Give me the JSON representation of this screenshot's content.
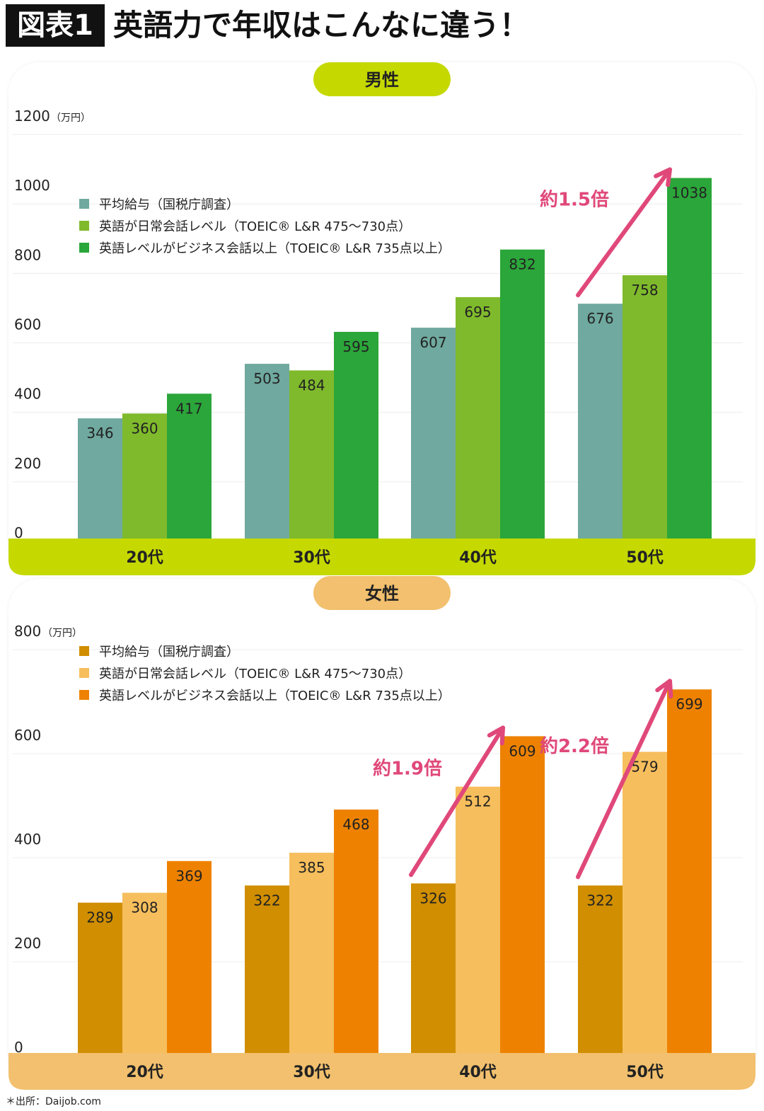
{
  "header": {
    "label": "図表1",
    "title": "英語力で年収はこんなに違う！"
  },
  "legend_labels": [
    "平均給与（国税庁調査）",
    "英語が日常会話レベル（TOEIC® L&R 475〜730点）",
    "英語レベルがビジネス会話以上（TOEIC® L&R 735点以上）"
  ],
  "source": "＊出所：Daijob.com",
  "chart_data": [
    {
      "type": "bar",
      "title": "男性",
      "unit": "（万円）",
      "categories": [
        "20代",
        "30代",
        "40代",
        "50代"
      ],
      "series": [
        {
          "name": "平均給与（国税庁調査）",
          "color": "#6fa99f",
          "values": [
            346,
            503,
            607,
            676
          ]
        },
        {
          "name": "英語が日常会話レベル（TOEIC® L&R 475〜730点）",
          "color": "#7fba2c",
          "values": [
            360,
            484,
            695,
            758
          ]
        },
        {
          "name": "英語レベルがビジネス会話以上（TOEIC® L&R 735点以上）",
          "color": "#2ba63a",
          "values": [
            417,
            595,
            832,
            1038
          ]
        }
      ],
      "ylim": [
        0,
        1200
      ],
      "yticks": [
        0,
        200,
        400,
        600,
        800,
        1000,
        1200
      ],
      "grid": true,
      "legend_position": "top-left",
      "colors": {
        "title_pill": "#c5d900",
        "axis_band": "#c5d900"
      },
      "annotations": [
        {
          "text": "約1.5倍",
          "category": "50代",
          "color": "#e0487a"
        }
      ]
    },
    {
      "type": "bar",
      "title": "女性",
      "unit": "（万円）",
      "categories": [
        "20代",
        "30代",
        "40代",
        "50代"
      ],
      "series": [
        {
          "name": "平均給与（国税庁調査）",
          "color": "#d08e00",
          "values": [
            289,
            322,
            326,
            322
          ]
        },
        {
          "name": "英語が日常会話レベル（TOEIC® L&R 475〜730点）",
          "color": "#f6be5c",
          "values": [
            308,
            385,
            512,
            579
          ]
        },
        {
          "name": "英語レベルがビジネス会話以上（TOEIC® L&R 735点以上）",
          "color": "#ee8200",
          "values": [
            369,
            468,
            609,
            699
          ]
        }
      ],
      "ylim": [
        0,
        800
      ],
      "yticks": [
        0,
        200,
        400,
        600,
        800
      ],
      "grid": true,
      "legend_position": "top-left",
      "colors": {
        "title_pill": "#f2c06e",
        "axis_band": "#f2c06e"
      },
      "annotations": [
        {
          "text": "約1.9倍",
          "category": "40代",
          "color": "#e0487a"
        },
        {
          "text": "約2.2倍",
          "category": "50代",
          "color": "#e0487a"
        }
      ]
    }
  ]
}
